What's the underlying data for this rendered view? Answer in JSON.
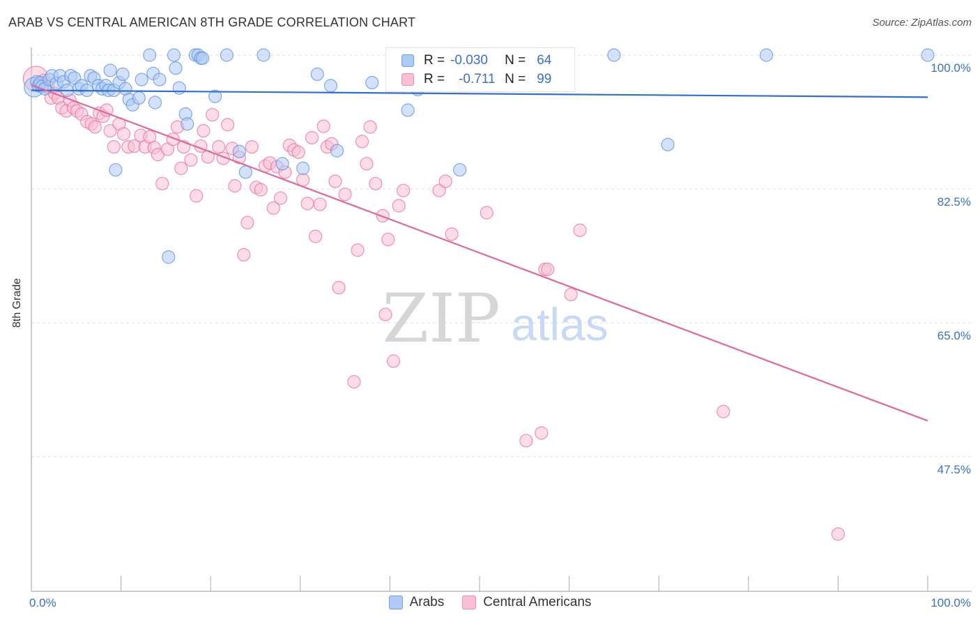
{
  "title": "ARAB VS CENTRAL AMERICAN 8TH GRADE CORRELATION CHART",
  "source": "Source: ZipAtlas.com",
  "watermark": {
    "zip": "ZIP",
    "atlas": "atlas"
  },
  "stats": {
    "r_label": "R =",
    "n_label": "N =",
    "rows": [
      {
        "r": "-0.030",
        "n": "64",
        "fill": "#aecbf5",
        "stroke": "#6f9ee6"
      },
      {
        "r": "-0.711",
        "n": "99",
        "fill": "#f9bfd2",
        "stroke": "#ee8db0"
      }
    ]
  },
  "legend": [
    {
      "label": "Arabs",
      "fill": "#aecbf5",
      "stroke": "#6f9ee6"
    },
    {
      "label": "Central Americans",
      "fill": "#f9bfd2",
      "stroke": "#ee8db0"
    }
  ],
  "chart_data": {
    "type": "scatter",
    "title": "ARAB VS CENTRAL AMERICAN 8TH GRADE CORRELATION CHART",
    "xlabel": "",
    "ylabel": "8th Grade",
    "xlim": [
      0,
      105
    ],
    "ylim": [
      28,
      101
    ],
    "x_tick_labels": [
      {
        "value": 0,
        "label": "0.0%"
      },
      {
        "value": 100,
        "label": "100.0%"
      }
    ],
    "y_ticks": [
      {
        "value": 100,
        "label": "100.0%"
      },
      {
        "value": 82.5,
        "label": "82.5%"
      },
      {
        "value": 65,
        "label": "65.0%"
      },
      {
        "value": 47.5,
        "label": "47.5%"
      }
    ],
    "x_minor_ticks": [
      10,
      20,
      30,
      40,
      50,
      60,
      70,
      80,
      90,
      100
    ],
    "grid": true,
    "series": [
      {
        "name": "Arabs",
        "color": "#5b8fdf",
        "fill": "#aecbf5",
        "trend": {
          "x0": 0,
          "y0": 95.4,
          "x1": 100,
          "y1": 94.5,
          "color": "#2f6fcf"
        },
        "points": [
          [
            0.3,
            95.8
          ],
          [
            0.6,
            96.5
          ],
          [
            0.8,
            96.0
          ],
          [
            1.0,
            96.4
          ],
          [
            1.2,
            95.9
          ],
          [
            1.5,
            95.6
          ],
          [
            2.0,
            96.8
          ],
          [
            2.3,
            97.3
          ],
          [
            2.8,
            96.3
          ],
          [
            3.2,
            97.3
          ],
          [
            3.6,
            96.5
          ],
          [
            4.0,
            95.4
          ],
          [
            4.4,
            97.3
          ],
          [
            4.8,
            97.0
          ],
          [
            5.3,
            95.6
          ],
          [
            5.6,
            96.0
          ],
          [
            6.2,
            95.4
          ],
          [
            6.6,
            97.3
          ],
          [
            7.0,
            97.0
          ],
          [
            7.5,
            96.0
          ],
          [
            7.9,
            95.6
          ],
          [
            8.3,
            96.0
          ],
          [
            8.6,
            95.4
          ],
          [
            8.8,
            98.0
          ],
          [
            9.2,
            95.4
          ],
          [
            9.4,
            85.0
          ],
          [
            9.8,
            96.4
          ],
          [
            10.2,
            97.5
          ],
          [
            10.5,
            95.6
          ],
          [
            10.9,
            94.2
          ],
          [
            11.3,
            93.5
          ],
          [
            12.0,
            94.4
          ],
          [
            12.3,
            96.8
          ],
          [
            13.2,
            100.0
          ],
          [
            13.6,
            97.6
          ],
          [
            13.8,
            93.8
          ],
          [
            14.3,
            96.8
          ],
          [
            15.3,
            73.6
          ],
          [
            15.9,
            100.0
          ],
          [
            16.1,
            98.3
          ],
          [
            16.5,
            95.7
          ],
          [
            17.2,
            92.3
          ],
          [
            17.4,
            91.0
          ],
          [
            18.3,
            100.0
          ],
          [
            18.6,
            100.0
          ],
          [
            18.9,
            99.6
          ],
          [
            19.1,
            99.6
          ],
          [
            20.5,
            94.6
          ],
          [
            21.8,
            100.0
          ],
          [
            23.2,
            87.4
          ],
          [
            23.9,
            84.7
          ],
          [
            25.9,
            100.0
          ],
          [
            28.0,
            85.8
          ],
          [
            30.3,
            85.2
          ],
          [
            31.9,
            97.5
          ],
          [
            33.4,
            96.0
          ],
          [
            34.1,
            87.5
          ],
          [
            38.0,
            96.4
          ],
          [
            42.0,
            92.8
          ],
          [
            43.1,
            95.5
          ],
          [
            47.8,
            85.0
          ],
          [
            65.0,
            100.0
          ],
          [
            71.0,
            88.3
          ],
          [
            82.0,
            100.0
          ],
          [
            100.0,
            100.0
          ]
        ]
      },
      {
        "name": "Central Americans",
        "color": "#ec6f9a",
        "fill": "#f9bfd2",
        "trend": {
          "x0": 0,
          "y0": 96.1,
          "x1": 100,
          "y1": 52.2,
          "color": "#e3669a"
        },
        "points": [
          [
            0.5,
            96.9
          ],
          [
            1.0,
            96.3
          ],
          [
            1.4,
            96.7
          ],
          [
            1.8,
            95.8
          ],
          [
            2.2,
            94.4
          ],
          [
            2.6,
            95.0
          ],
          [
            3.0,
            94.4
          ],
          [
            3.4,
            93.1
          ],
          [
            3.9,
            92.7
          ],
          [
            4.3,
            94.1
          ],
          [
            4.7,
            93.1
          ],
          [
            5.1,
            92.7
          ],
          [
            5.6,
            92.3
          ],
          [
            6.2,
            91.3
          ],
          [
            6.7,
            91.0
          ],
          [
            7.1,
            90.6
          ],
          [
            7.6,
            92.4
          ],
          [
            8.0,
            92.0
          ],
          [
            8.4,
            92.8
          ],
          [
            8.8,
            90.1
          ],
          [
            9.2,
            88.0
          ],
          [
            9.8,
            91.0
          ],
          [
            10.3,
            89.7
          ],
          [
            10.8,
            88.0
          ],
          [
            11.5,
            88.1
          ],
          [
            12.2,
            89.5
          ],
          [
            12.7,
            88.0
          ],
          [
            13.2,
            89.3
          ],
          [
            13.7,
            87.9
          ],
          [
            14.1,
            87.0
          ],
          [
            14.6,
            83.2
          ],
          [
            15.2,
            87.7
          ],
          [
            15.8,
            89.0
          ],
          [
            16.3,
            90.6
          ],
          [
            16.7,
            85.2
          ],
          [
            17.0,
            88.0
          ],
          [
            17.8,
            86.3
          ],
          [
            18.4,
            81.6
          ],
          [
            18.9,
            88.1
          ],
          [
            19.2,
            90.1
          ],
          [
            19.7,
            86.7
          ],
          [
            20.2,
            92.2
          ],
          [
            20.9,
            88.0
          ],
          [
            21.4,
            86.5
          ],
          [
            21.9,
            90.9
          ],
          [
            22.4,
            87.8
          ],
          [
            22.7,
            82.9
          ],
          [
            23.2,
            86.6
          ],
          [
            23.7,
            73.9
          ],
          [
            24.1,
            78.1
          ],
          [
            24.6,
            88.0
          ],
          [
            25.1,
            82.7
          ],
          [
            25.6,
            82.4
          ],
          [
            26.1,
            85.5
          ],
          [
            26.6,
            85.9
          ],
          [
            27.0,
            80.0
          ],
          [
            27.4,
            85.4
          ],
          [
            27.8,
            81.3
          ],
          [
            28.3,
            84.7
          ],
          [
            28.8,
            88.2
          ],
          [
            29.3,
            87.6
          ],
          [
            29.8,
            87.3
          ],
          [
            30.3,
            83.7
          ],
          [
            30.8,
            80.6
          ],
          [
            31.3,
            89.2
          ],
          [
            31.7,
            76.3
          ],
          [
            32.2,
            80.5
          ],
          [
            32.6,
            90.7
          ],
          [
            33.0,
            88.0
          ],
          [
            33.5,
            88.4
          ],
          [
            33.9,
            83.5
          ],
          [
            34.3,
            69.6
          ],
          [
            35.0,
            81.8
          ],
          [
            36.0,
            57.3
          ],
          [
            36.4,
            74.5
          ],
          [
            36.9,
            88.7
          ],
          [
            37.4,
            85.8
          ],
          [
            37.8,
            90.6
          ],
          [
            38.4,
            83.2
          ],
          [
            39.2,
            79.0
          ],
          [
            39.5,
            66.1
          ],
          [
            39.8,
            75.9
          ],
          [
            40.4,
            60.0
          ],
          [
            41.0,
            80.3
          ],
          [
            41.5,
            82.3
          ],
          [
            45.5,
            82.3
          ],
          [
            46.2,
            83.5
          ],
          [
            46.9,
            76.6
          ],
          [
            48.4,
            96.1
          ],
          [
            50.8,
            79.4
          ],
          [
            55.2,
            49.6
          ],
          [
            57.3,
            72.0
          ],
          [
            57.6,
            72.0
          ],
          [
            60.2,
            68.7
          ],
          [
            61.2,
            77.1
          ],
          [
            77.2,
            53.4
          ],
          [
            90.0,
            37.4
          ],
          [
            47.9,
            96.5
          ],
          [
            56.9,
            50.6
          ]
        ]
      }
    ]
  }
}
